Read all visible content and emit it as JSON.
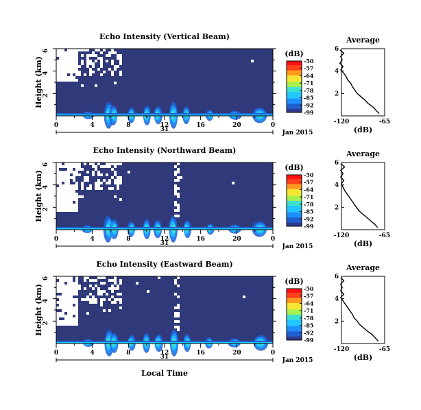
{
  "figure": {
    "y_axis_label": "Height (km)",
    "x_axis_label": "Local Time",
    "colorbar_unit": "(dB)",
    "day_label": "31",
    "month_label": "Jan 2015",
    "average_title": "Average",
    "average_xlabel": "(dB)"
  },
  "colors": {
    "background_level": "#303a7a",
    "colormap": [
      "#2e3b8a",
      "#1f5fcf",
      "#1e8fff",
      "#22c7ff",
      "#3fe0d0",
      "#a6f04f",
      "#f6e634",
      "#ff9a1e",
      "#ff3f1e",
      "#ff1010"
    ]
  },
  "chart_data": [
    {
      "type": "heatmap",
      "title": "Echo Intensity (Vertical Beam)",
      "xlabel": "",
      "ylabel": "Height (km)",
      "xlim": [
        0,
        24
      ],
      "ylim": [
        0,
        6
      ],
      "xticks": [
        "0",
        "4",
        "8",
        "12",
        "16",
        "20",
        "0"
      ],
      "yticks": [
        "2",
        "4",
        "6"
      ],
      "colorbar": {
        "label": "(dB)",
        "ticks": [
          "-50",
          "-57",
          "-64",
          "-71",
          "-78",
          "-85",
          "-92",
          "-99"
        ],
        "range": [
          -99,
          -50
        ]
      },
      "average_profile": {
        "title": "Average",
        "xlabel": "(dB)",
        "xticks": [
          "-120",
          "-65"
        ],
        "yticks": [
          "2",
          "4",
          "6"
        ],
        "xlim": [
          -120,
          -65
        ],
        "ylim": [
          0,
          6
        ],
        "height_km": [
          0.2,
          0.5,
          0.8,
          1.1,
          1.4,
          1.7,
          2.0,
          2.3,
          2.6,
          2.9,
          3.2,
          3.5,
          3.8,
          4.1,
          4.4,
          4.7,
          5.0,
          5.3,
          5.6,
          5.9
        ],
        "db": [
          -72,
          -76,
          -80,
          -86,
          -90,
          -95,
          -100,
          -103,
          -106,
          -108,
          -112,
          -114,
          -117,
          -121,
          -118,
          -122,
          -119,
          -121,
          -117,
          -122
        ]
      }
    },
    {
      "type": "heatmap",
      "title": "Echo Intensity (Northward Beam)",
      "xlabel": "",
      "ylabel": "Height (km)",
      "xlim": [
        0,
        24
      ],
      "ylim": [
        0,
        6
      ],
      "xticks": [
        "0",
        "4",
        "8",
        "12",
        "16",
        "20",
        "0"
      ],
      "yticks": [
        "2",
        "4",
        "6"
      ],
      "colorbar": {
        "label": "(dB)",
        "ticks": [
          "-50",
          "-57",
          "-64",
          "-71",
          "-78",
          "-85",
          "-92",
          "-99"
        ],
        "range": [
          -99,
          -50
        ]
      },
      "average_profile": {
        "title": "Average",
        "xlabel": "(dB)",
        "xticks": [
          "-120",
          "-65"
        ],
        "yticks": [
          "2",
          "4",
          "6"
        ],
        "xlim": [
          -120,
          -65
        ],
        "ylim": [
          0,
          6
        ],
        "height_km": [
          0.2,
          0.5,
          0.8,
          1.1,
          1.4,
          1.7,
          2.0,
          2.3,
          2.6,
          2.9,
          3.2,
          3.5,
          3.8,
          4.1,
          4.4,
          4.7,
          5.0,
          5.3,
          5.6,
          5.9
        ],
        "db": [
          -74,
          -78,
          -83,
          -88,
          -93,
          -98,
          -101,
          -104,
          -107,
          -110,
          -113,
          -116,
          -118,
          -120,
          -117,
          -121,
          -118,
          -121,
          -116,
          -121
        ]
      }
    },
    {
      "type": "heatmap",
      "title": "Echo Intensity (Eastward Beam)",
      "xlabel": "Local Time",
      "ylabel": "Height (km)",
      "xlim": [
        0,
        24
      ],
      "ylim": [
        0,
        6
      ],
      "xticks": [
        "0",
        "4",
        "8",
        "12",
        "16",
        "20",
        "0"
      ],
      "yticks": [
        "2",
        "4",
        "6"
      ],
      "colorbar": {
        "label": "(dB)",
        "ticks": [
          "-50",
          "-57",
          "-64",
          "-71",
          "-78",
          "-85",
          "-92",
          "-99"
        ],
        "range": [
          -99,
          -50
        ]
      },
      "average_profile": {
        "title": "Average",
        "xlabel": "(dB)",
        "xticks": [
          "-120",
          "-65"
        ],
        "yticks": [
          "2",
          "4",
          "6"
        ],
        "xlim": [
          -120,
          -65
        ],
        "ylim": [
          0,
          6
        ],
        "height_km": [
          0.2,
          0.5,
          0.8,
          1.1,
          1.4,
          1.7,
          2.0,
          2.3,
          2.6,
          2.9,
          3.2,
          3.5,
          3.8,
          4.1,
          4.4,
          4.7,
          5.0,
          5.3,
          5.6,
          5.9
        ],
        "db": [
          -73,
          -77,
          -81,
          -87,
          -92,
          -97,
          -100,
          -104,
          -106,
          -109,
          -112,
          -115,
          -118,
          -121,
          -117,
          -121,
          -119,
          -121,
          -117,
          -121
        ]
      }
    }
  ]
}
